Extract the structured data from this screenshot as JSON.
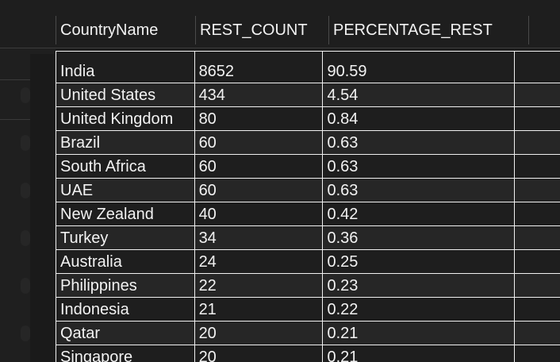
{
  "table": {
    "columns": [
      "CountryName",
      "REST_COUNT",
      "PERCENTAGE_REST"
    ],
    "rows": [
      [
        "India",
        "8652",
        "90.59"
      ],
      [
        "United States",
        "434",
        "4.54"
      ],
      [
        "United Kingdom",
        "80",
        "0.84"
      ],
      [
        "Brazil",
        "60",
        "0.63"
      ],
      [
        "South Africa",
        "60",
        "0.63"
      ],
      [
        "UAE",
        "60",
        "0.63"
      ],
      [
        "New Zealand",
        "40",
        "0.42"
      ],
      [
        "Turkey",
        "34",
        "0.36"
      ],
      [
        "Australia",
        "24",
        "0.25"
      ],
      [
        "Philippines",
        "22",
        "0.23"
      ],
      [
        "Indonesia",
        "21",
        "0.22"
      ],
      [
        "Qatar",
        "20",
        "0.21"
      ],
      [
        "Singapore",
        "20",
        "0.21"
      ]
    ]
  },
  "colors": {
    "background": "#1e1e1e",
    "row_alt": "#262626",
    "grid_line": "#f0f0f0",
    "text": "#f2f2f2"
  }
}
